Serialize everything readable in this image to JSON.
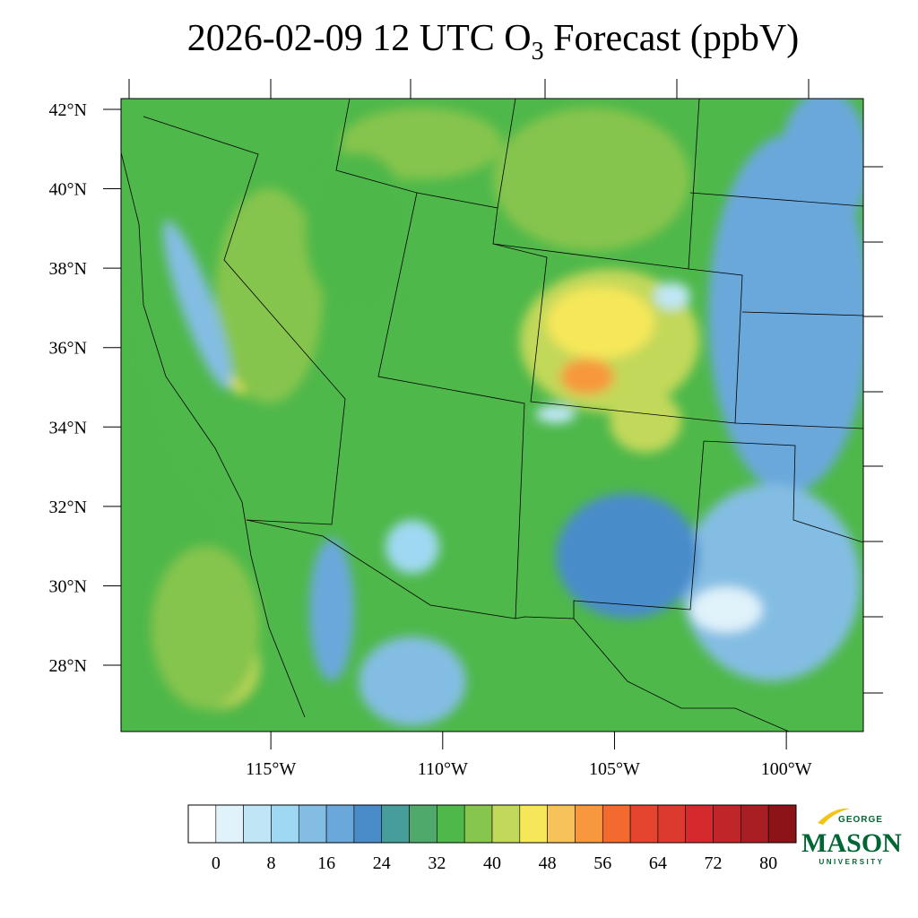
{
  "chart_data": {
    "type": "map",
    "title": {
      "before": "2026-02-09 12 UTC O",
      "subscript": "3",
      "after": " Forecast (ppbV)"
    },
    "xlim": [
      -119.36,
      -97.76
    ],
    "ylim": [
      26.33,
      42.27
    ],
    "xticks": [
      {
        "value": -115,
        "label": "115°W"
      },
      {
        "value": -110,
        "label": "110°W"
      },
      {
        "value": -105,
        "label": "105°W"
      },
      {
        "value": -100,
        "label": "100°W"
      }
    ],
    "yticks": [
      {
        "value": 28,
        "label": "28°N"
      },
      {
        "value": 30,
        "label": "30°N"
      },
      {
        "value": 32,
        "label": "32°N"
      },
      {
        "value": 34,
        "label": "34°N"
      },
      {
        "value": 36,
        "label": "36°N"
      },
      {
        "value": 38,
        "label": "38°N"
      },
      {
        "value": 40,
        "label": "40°N"
      },
      {
        "value": 42,
        "label": "42°N"
      }
    ],
    "colorbar": {
      "xlim": [
        -4,
        84
      ],
      "levels": [
        0,
        4,
        8,
        12,
        16,
        20,
        24,
        28,
        32,
        36,
        40,
        44,
        48,
        52,
        56,
        60,
        64,
        68,
        72,
        76,
        80
      ],
      "colors": [
        "#ffffff",
        "#e0f3fb",
        "#c0e6f6",
        "#9fd8f2",
        "#84bde3",
        "#6aa8dc",
        "#4a8cca",
        "#469d9a",
        "#4ea96a",
        "#4eb84a",
        "#86c54e",
        "#c2d85a",
        "#f6e75a",
        "#f8c25a",
        "#f7983e",
        "#f26a2e",
        "#e5452e",
        "#dc3a2e",
        "#d42a2e",
        "#c0252a",
        "#a81e23",
        "#8c1418"
      ],
      "ticks": [
        0,
        8,
        16,
        24,
        32,
        40,
        48,
        56,
        64,
        72,
        80
      ]
    }
  },
  "logo": {
    "top": "GEORGE",
    "main": "MASON",
    "bottom": "UNIVERSITY"
  }
}
